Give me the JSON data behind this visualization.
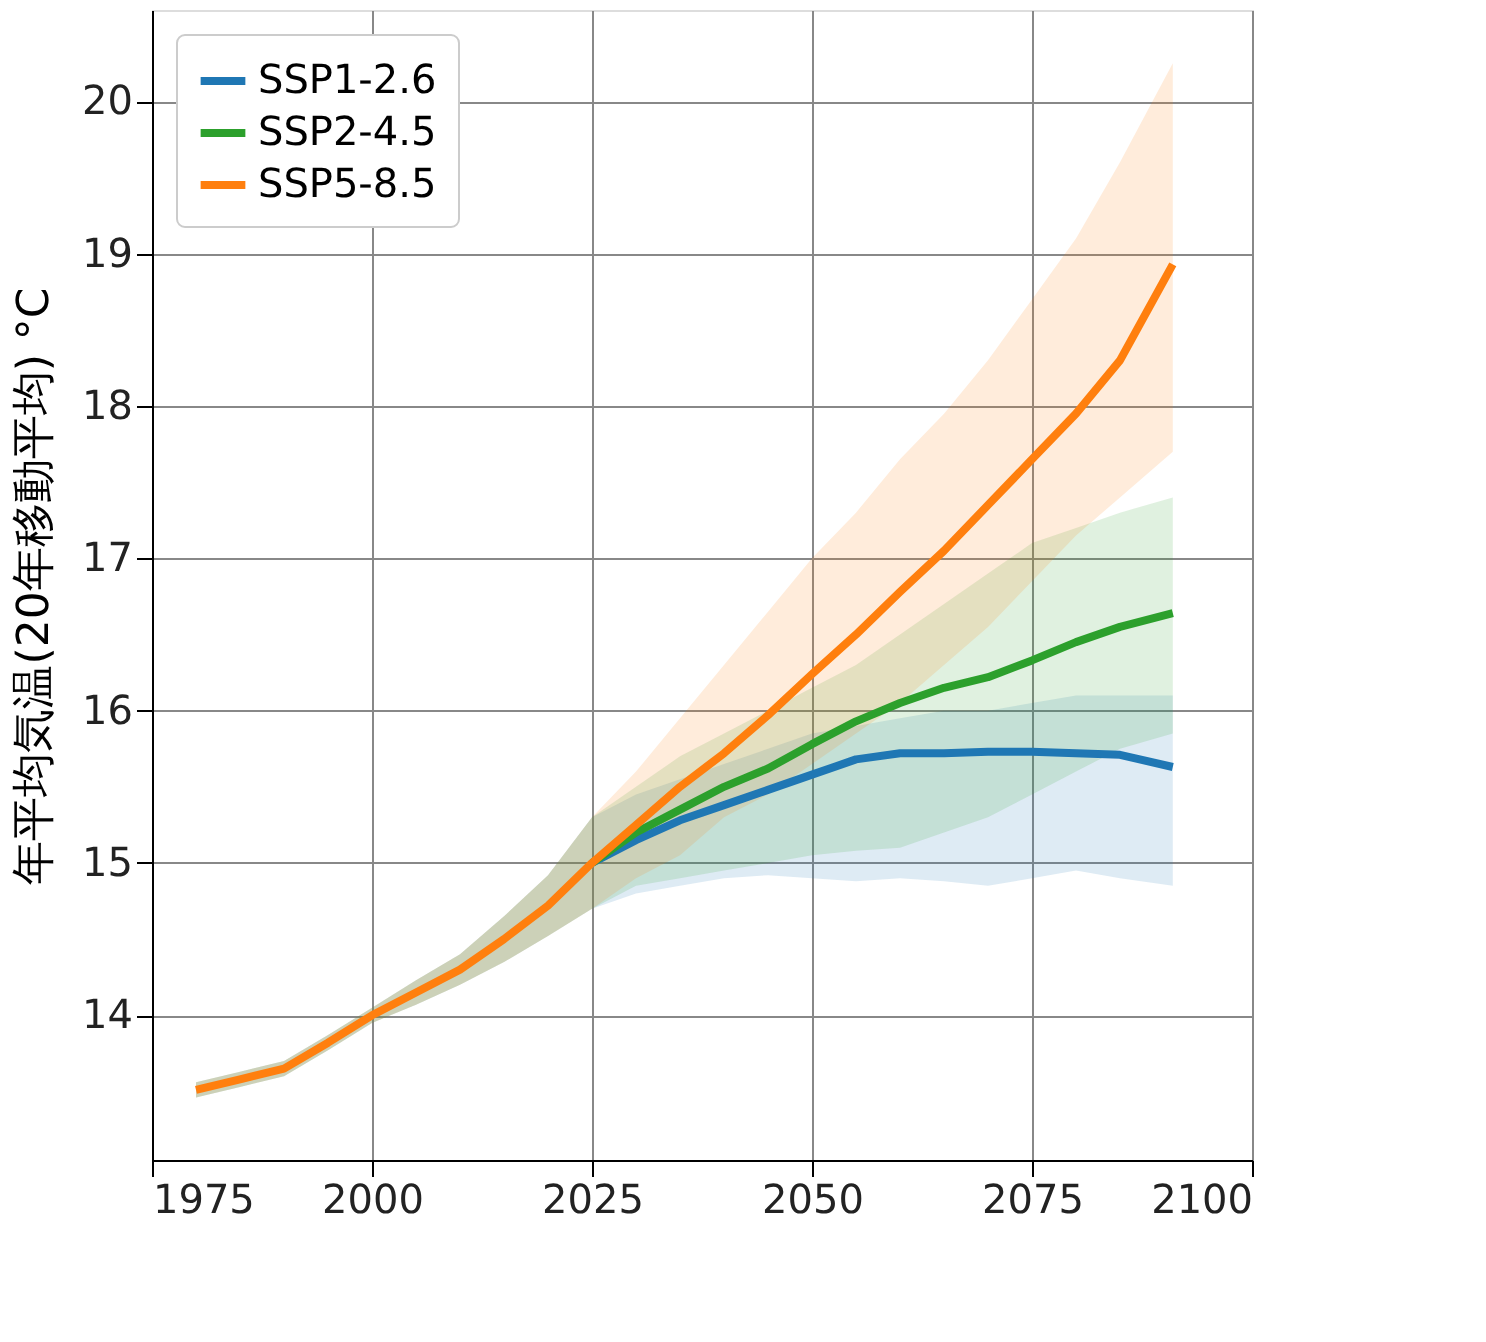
{
  "chart_data": {
    "type": "line",
    "ylabel": "年平均気温(20年移動平均) °C",
    "xlim": [
      1975,
      2100
    ],
    "xticks": [
      1975,
      2000,
      2025,
      2050,
      2075,
      2100
    ],
    "ylim": [
      13.05,
      20.6
    ],
    "yticks": [
      14,
      15,
      16,
      17,
      18,
      19,
      20
    ],
    "grid": true,
    "legend": "top left",
    "line_style": "solid",
    "marker": "none",
    "x": [
      1980,
      1985,
      1990,
      1995,
      2000,
      2005,
      2010,
      2015,
      2020,
      2025,
      2030,
      2035,
      2040,
      2045,
      2050,
      2055,
      2060,
      2065,
      2070,
      2075,
      2080,
      2085,
      2091
    ],
    "series": [
      {
        "name": "SSP1-2.6",
        "color": "#1f77b4",
        "values": [
          null,
          null,
          null,
          null,
          null,
          null,
          null,
          null,
          null,
          15.0,
          15.15,
          15.28,
          15.38,
          15.48,
          15.58,
          15.68,
          15.72,
          15.72,
          15.73,
          15.73,
          15.72,
          15.71,
          15.63
        ],
        "lower": [
          13.46,
          13.53,
          13.6,
          13.77,
          13.95,
          14.07,
          14.2,
          14.35,
          14.52,
          14.7,
          14.8,
          14.85,
          14.9,
          14.92,
          14.9,
          14.88,
          14.9,
          14.88,
          14.85,
          14.9,
          14.95,
          14.9,
          14.85
        ],
        "upper": [
          13.56,
          13.63,
          13.7,
          13.87,
          14.05,
          14.23,
          14.4,
          14.65,
          14.92,
          15.3,
          15.45,
          15.55,
          15.65,
          15.75,
          15.85,
          15.9,
          15.95,
          16.0,
          16.0,
          16.05,
          16.1,
          16.1,
          16.1
        ]
      },
      {
        "name": "SSP2-4.5",
        "color": "#2ca02c",
        "values": [
          null,
          null,
          null,
          null,
          null,
          null,
          null,
          null,
          null,
          15.0,
          15.2,
          15.35,
          15.5,
          15.62,
          15.78,
          15.93,
          16.05,
          16.15,
          16.22,
          16.33,
          16.45,
          16.55,
          16.64
        ],
        "lower": [
          13.46,
          13.53,
          13.6,
          13.77,
          13.95,
          14.07,
          14.2,
          14.35,
          14.52,
          14.7,
          14.85,
          14.9,
          14.95,
          15.0,
          15.05,
          15.08,
          15.1,
          15.2,
          15.3,
          15.45,
          15.6,
          15.75,
          15.85
        ],
        "upper": [
          13.56,
          13.63,
          13.7,
          13.87,
          14.05,
          14.23,
          14.4,
          14.65,
          14.92,
          15.3,
          15.5,
          15.7,
          15.85,
          16.0,
          16.15,
          16.3,
          16.5,
          16.7,
          16.9,
          17.1,
          17.2,
          17.3,
          17.4
        ]
      },
      {
        "name": "SSP5-8.5",
        "color": "#ff7f0e",
        "values": [
          13.51,
          13.58,
          13.65,
          13.82,
          14.0,
          14.15,
          14.3,
          14.5,
          14.72,
          15.0,
          15.25,
          15.5,
          15.72,
          15.97,
          16.24,
          16.5,
          16.78,
          17.05,
          17.35,
          17.65,
          17.95,
          18.3,
          18.93
        ],
        "lower": [
          13.46,
          13.53,
          13.6,
          13.77,
          13.95,
          14.07,
          14.2,
          14.35,
          14.52,
          14.7,
          14.9,
          15.05,
          15.3,
          15.45,
          15.65,
          15.85,
          16.05,
          16.3,
          16.55,
          16.85,
          17.15,
          17.4,
          17.7
        ],
        "upper": [
          13.56,
          13.63,
          13.7,
          13.87,
          14.05,
          14.23,
          14.4,
          14.65,
          14.92,
          15.3,
          15.6,
          15.95,
          16.3,
          16.65,
          17.0,
          17.3,
          17.65,
          17.95,
          18.3,
          18.7,
          19.1,
          19.6,
          20.25
        ]
      }
    ]
  }
}
